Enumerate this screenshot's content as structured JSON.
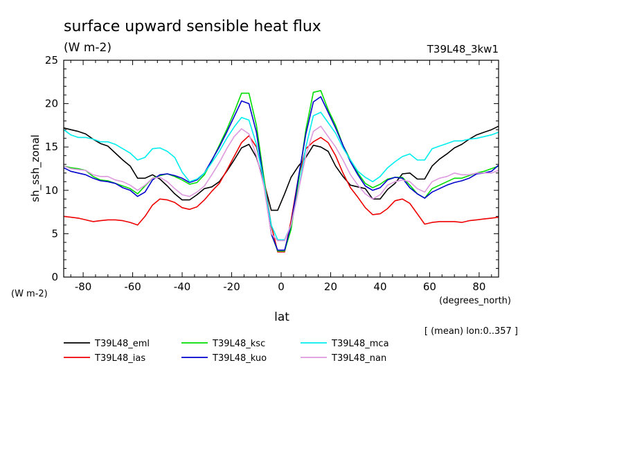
{
  "chart_data": {
    "type": "line",
    "title": "surface upward sensible heat flux",
    "units": "(W m-2)",
    "run_label": "T39L48_3kw1",
    "ylabel": "sh_ssh_zonal",
    "y_units": "(W m-2)",
    "xlabel": "lat",
    "x_units": "(degrees_north)",
    "footnote": "[ (mean) lon:0..357 ]",
    "xlim": [
      -87.86,
      87.86
    ],
    "ylim": [
      0,
      25
    ],
    "xticks": [
      -80,
      -60,
      -40,
      -20,
      0,
      20,
      40,
      60,
      80
    ],
    "yticks": [
      0,
      5,
      10,
      15,
      20,
      25
    ],
    "x": [
      -87.86,
      -85,
      -82,
      -79,
      -76,
      -73,
      -70,
      -67,
      -64,
      -61,
      -58,
      -55,
      -52,
      -49,
      -46,
      -43,
      -40,
      -37,
      -34,
      -31,
      -28,
      -25,
      -22,
      -19,
      -16,
      -13,
      -10,
      -7,
      -4,
      -1.4,
      1.4,
      4,
      7,
      10,
      13,
      16,
      19,
      22,
      25,
      28,
      31,
      34,
      37,
      40,
      43,
      46,
      49,
      52,
      55,
      58,
      61,
      64,
      67,
      70,
      73,
      76,
      79,
      82,
      85,
      87.86
    ],
    "series": [
      {
        "name": "T39L48_eml",
        "color": "#000000",
        "values": [
          17.2,
          17.0,
          16.8,
          16.5,
          15.9,
          15.4,
          15.1,
          14.3,
          13.5,
          12.8,
          11.4,
          11.4,
          11.8,
          11.3,
          10.5,
          9.6,
          8.9,
          8.9,
          9.5,
          10.2,
          10.4,
          11.0,
          12.2,
          13.5,
          14.9,
          15.3,
          13.8,
          11.0,
          7.7,
          7.7,
          9.6,
          11.5,
          12.8,
          13.8,
          15.2,
          15.0,
          14.5,
          12.8,
          11.6,
          10.6,
          10.4,
          10.2,
          9.0,
          9.0,
          10.1,
          10.8,
          11.9,
          12.0,
          11.3,
          11.3,
          12.8,
          13.6,
          14.2,
          14.9,
          15.3,
          15.9,
          16.4,
          16.7,
          17.0,
          17.4
        ]
      },
      {
        "name": "T39L48_ias",
        "color": "#ee0000",
        "values": [
          7.0,
          6.9,
          6.8,
          6.6,
          6.4,
          6.5,
          6.6,
          6.6,
          6.5,
          6.3,
          6.0,
          7.0,
          8.3,
          9.0,
          8.9,
          8.6,
          8.0,
          7.8,
          8.1,
          8.9,
          9.9,
          10.8,
          12.3,
          13.9,
          15.5,
          16.3,
          15.0,
          11.5,
          6.0,
          2.9,
          2.9,
          6.5,
          11.5,
          14.8,
          15.6,
          16.1,
          15.5,
          14.0,
          12.0,
          10.3,
          9.2,
          8.0,
          7.2,
          7.3,
          7.9,
          8.8,
          9.0,
          8.5,
          7.3,
          6.1,
          6.3,
          6.4,
          6.4,
          6.4,
          6.3,
          6.5,
          6.6,
          6.7,
          6.8,
          6.9
        ]
      },
      {
        "name": "T39L48_ksc",
        "color": "#00dd00",
        "values": [
          12.8,
          12.6,
          12.5,
          12.3,
          11.6,
          11.2,
          11.1,
          10.8,
          10.5,
          10.2,
          9.6,
          10.5,
          11.4,
          11.7,
          11.9,
          11.6,
          11.2,
          10.7,
          10.9,
          11.8,
          13.4,
          15.2,
          17.0,
          19.0,
          21.2,
          21.2,
          17.5,
          11.5,
          5.0,
          3.0,
          3.0,
          5.5,
          11.0,
          17.0,
          21.3,
          21.5,
          19.3,
          17.5,
          15.2,
          13.5,
          12.0,
          10.8,
          10.3,
          10.7,
          11.3,
          11.5,
          11.5,
          10.6,
          9.6,
          9.1,
          10.2,
          10.6,
          11.0,
          11.4,
          11.4,
          11.7,
          12.0,
          12.2,
          12.5,
          12.8
        ]
      },
      {
        "name": "T39L48_kuo",
        "color": "#0000cc",
        "values": [
          12.6,
          12.2,
          12.0,
          11.8,
          11.4,
          11.1,
          11.0,
          10.8,
          10.3,
          10.0,
          9.3,
          9.8,
          11.2,
          11.8,
          11.9,
          11.7,
          11.4,
          10.9,
          11.2,
          12.0,
          13.5,
          15.0,
          16.7,
          18.5,
          20.3,
          20.0,
          16.7,
          11.0,
          5.0,
          3.1,
          3.1,
          6.0,
          11.5,
          16.5,
          20.2,
          20.8,
          19.0,
          17.2,
          15.2,
          13.3,
          11.8,
          10.5,
          10.0,
          10.3,
          11.2,
          11.5,
          11.4,
          10.3,
          9.6,
          9.1,
          9.8,
          10.2,
          10.6,
          10.9,
          11.1,
          11.4,
          11.9,
          12.0,
          12.2,
          12.9
        ]
      },
      {
        "name": "T39L48_mca",
        "color": "#00eeee",
        "values": [
          17.0,
          16.4,
          16.1,
          16.1,
          15.9,
          15.6,
          15.6,
          15.3,
          14.8,
          14.3,
          13.5,
          13.8,
          14.8,
          14.9,
          14.5,
          13.8,
          12.1,
          11.0,
          11.3,
          12.0,
          13.2,
          14.5,
          16.0,
          17.3,
          18.4,
          18.1,
          15.3,
          11.0,
          6.0,
          4.3,
          4.3,
          6.0,
          10.0,
          15.0,
          18.6,
          19.0,
          17.8,
          16.6,
          14.9,
          13.5,
          12.2,
          11.5,
          11.0,
          11.6,
          12.6,
          13.3,
          13.9,
          14.2,
          13.5,
          13.5,
          14.8,
          15.1,
          15.4,
          15.7,
          15.7,
          15.9,
          16.0,
          16.2,
          16.4,
          16.7
        ]
      },
      {
        "name": "T39L48_nan",
        "color": "#dd99dd",
        "values": [
          12.8,
          12.5,
          12.4,
          12.3,
          11.8,
          11.6,
          11.6,
          11.2,
          11.0,
          10.6,
          10.0,
          10.6,
          11.4,
          11.5,
          11.0,
          10.2,
          9.5,
          9.3,
          9.8,
          10.5,
          11.8,
          13.2,
          14.8,
          16.2,
          17.1,
          16.5,
          14.0,
          10.5,
          5.0,
          4.2,
          4.2,
          6.0,
          10.0,
          14.0,
          16.8,
          17.4,
          16.2,
          15.0,
          13.5,
          11.8,
          10.6,
          9.6,
          9.0,
          9.5,
          10.6,
          11.0,
          11.2,
          11.0,
          10.2,
          9.8,
          11.0,
          11.4,
          11.6,
          12.0,
          11.8,
          11.8,
          12.0,
          12.0,
          12.0,
          12.3
        ]
      }
    ]
  }
}
